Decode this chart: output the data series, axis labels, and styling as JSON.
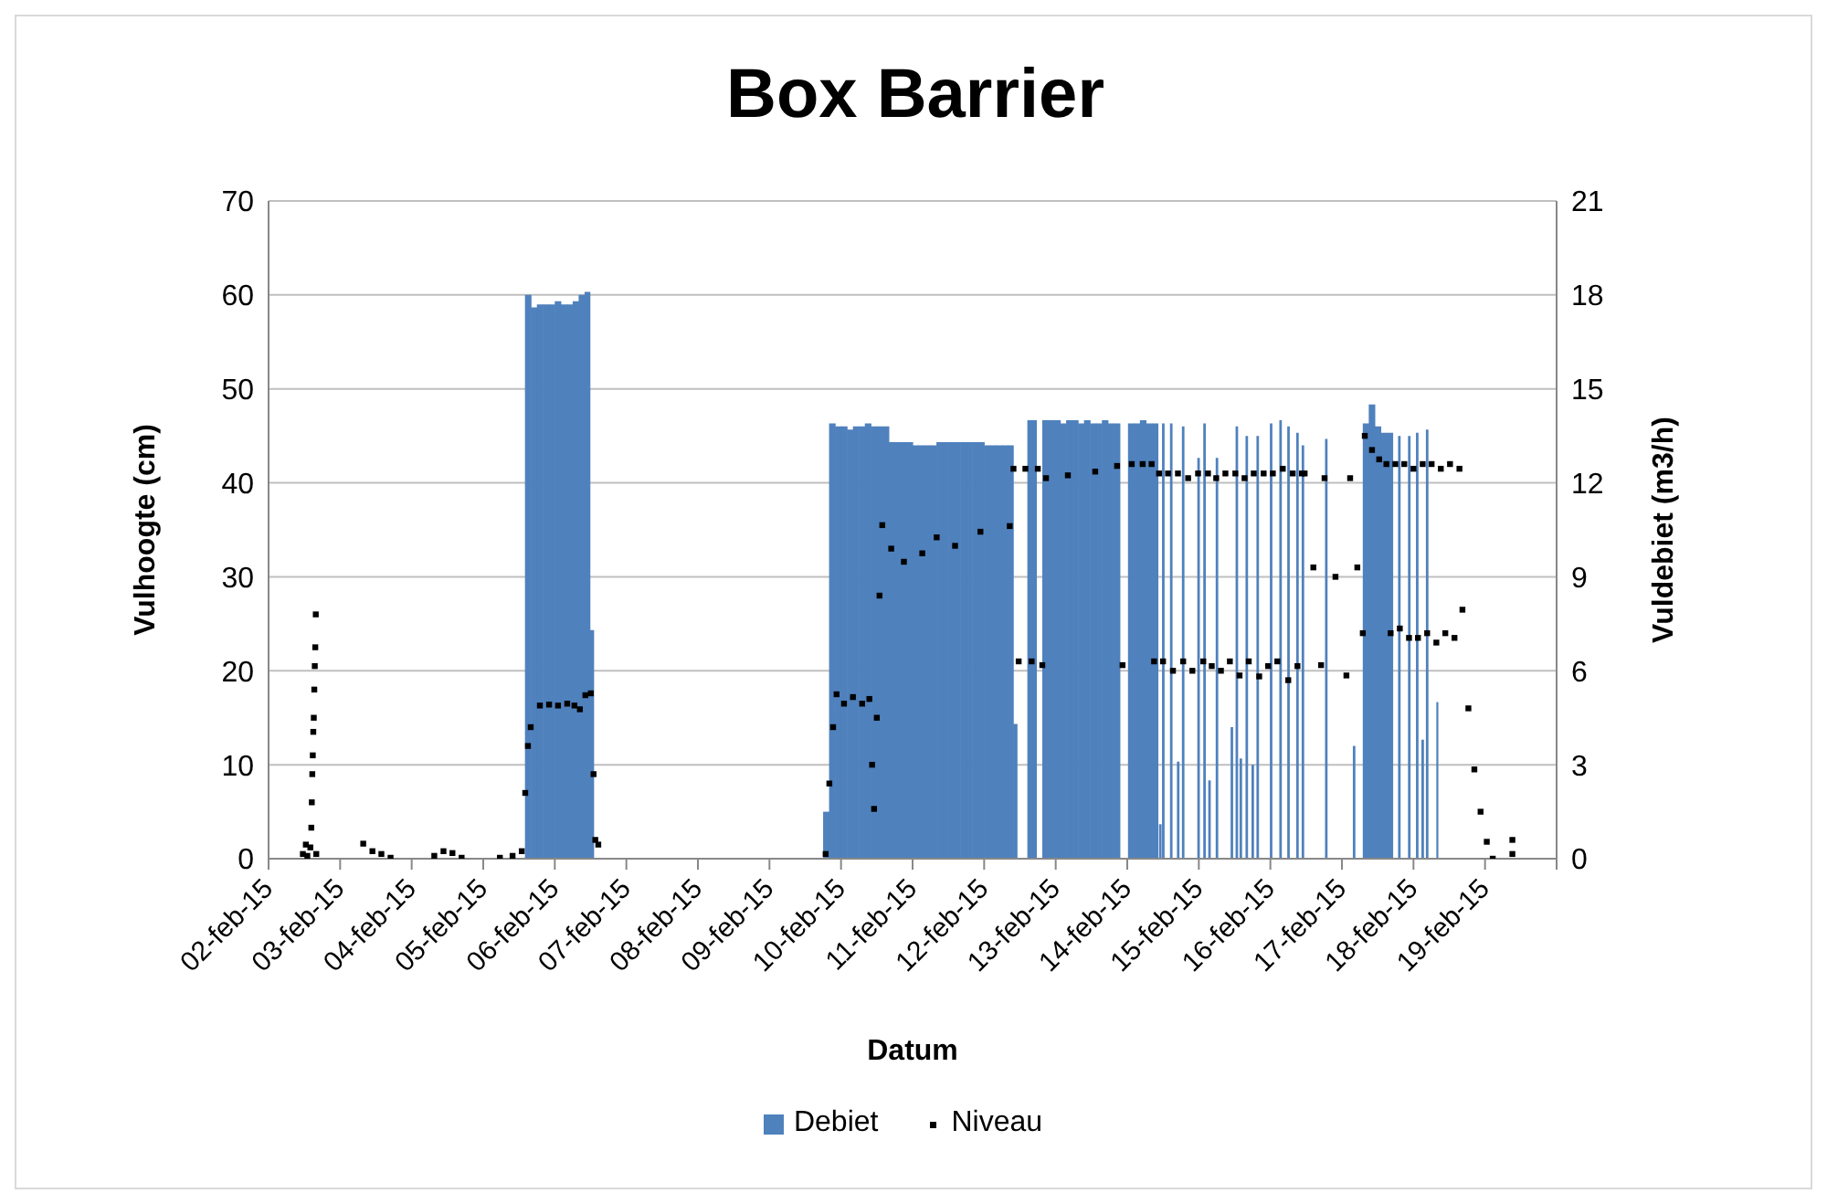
{
  "chart_data": {
    "type": "bar",
    "title": "Box Barrier",
    "xlabel": "Datum",
    "ylabel": "Vulhoogte (cm)",
    "y2label": "Vuldebiet (m3/h)",
    "xlim": [
      "--02-02",
      "--02-20"
    ],
    "xticks": [
      {
        "value": "--02-02",
        "label": "02-feb-15"
      },
      {
        "value": "--02-03",
        "label": "03-feb-15"
      },
      {
        "value": "--02-04",
        "label": "04-feb-15"
      },
      {
        "value": "--02-05",
        "label": "05-feb-15"
      },
      {
        "value": "--02-06",
        "label": "06-feb-15"
      },
      {
        "value": "--02-07",
        "label": "07-feb-15"
      },
      {
        "value": "--02-08",
        "label": "08-feb-15"
      },
      {
        "value": "--02-09",
        "label": "09-feb-15"
      },
      {
        "value": "--02-10",
        "label": "10-feb-15"
      },
      {
        "value": "--02-11",
        "label": "11-feb-15"
      },
      {
        "value": "--02-12",
        "label": "12-feb-15"
      },
      {
        "value": "--02-13",
        "label": "13-feb-15"
      },
      {
        "value": "--02-14",
        "label": "14-feb-15"
      },
      {
        "value": "--02-15",
        "label": "15-feb-15"
      },
      {
        "value": "--02-16",
        "label": "16-feb-15"
      },
      {
        "value": "--02-17",
        "label": "17-feb-15"
      },
      {
        "value": "--02-18",
        "label": "18-feb-15"
      },
      {
        "value": "--02-19",
        "label": "19-feb-15"
      },
      {
        "value": "--02-20",
        "label": null
      }
    ],
    "ylim": [
      0,
      70
    ],
    "yticks": [
      0,
      10,
      20,
      30,
      40,
      50,
      60,
      70
    ],
    "y2lim": [
      0,
      21
    ],
    "y2ticks": [
      0,
      3,
      6,
      9,
      12,
      15,
      18,
      21
    ],
    "grid": "y",
    "legend": "bottom",
    "marker": "square",
    "series": [
      {
        "name": "Debiet",
        "axis": "y2",
        "color": "#4f81bd",
        "x": [
          "--02-05T15:00",
          "--02-05T17:00",
          "--02-05T19:00",
          "--02-05T21:00",
          "--02-05T23:00",
          "--02-06T01:00",
          "--02-06T03:00",
          "--02-06T05:00",
          "--02-06T07:00",
          "--02-06T09:00",
          "--02-06T11:00",
          "--02-06T12:30",
          "--02-06T13:00",
          "--02-09T19:00",
          "--02-09T21:00",
          "--02-09T23:00",
          "--02-10T01:00",
          "--02-10T03:00",
          "--02-10T05:00",
          "--02-10T07:00",
          "--02-10T09:00",
          "--02-10T11:00",
          "--02-10T13:00",
          "--02-10T15:00",
          "--02-10T17:00",
          "--02-10T19:00",
          "--02-10T21:00",
          "--02-10T23:00",
          "--02-11T01:00",
          "--02-11T03:00",
          "--02-11T05:00",
          "--02-11T07:00",
          "--02-11T09:00",
          "--02-11T11:00",
          "--02-11T13:00",
          "--02-11T15:00",
          "--02-11T17:00",
          "--02-11T19:00",
          "--02-11T21:00",
          "--02-11T23:00",
          "--02-12T01:00",
          "--02-12T03:00",
          "--02-12T05:00",
          "--02-12T07:00",
          "--02-12T09:00",
          "--02-12T10:30",
          "--02-12T11:00",
          "--02-12T16:00",
          "--02-12T17:30",
          "--02-12T20:30",
          "--02-12T22:30",
          "--02-13T00:30",
          "--02-13T02:30",
          "--02-13T04:30",
          "--02-13T06:30",
          "--02-13T08:30",
          "--02-13T10:30",
          "--02-13T12:30",
          "--02-13T14:30",
          "--02-13T16:30",
          "--02-13T18:30",
          "--02-13T20:30",
          "--02-13T21:30",
          "--02-14T01:15",
          "--02-14T03:15",
          "--02-14T05:15",
          "--02-14T07:15",
          "--02-14T09:15",
          "--02-14T10:15",
          "--02-14T11:00",
          "--02-14T11:20",
          "--02-14T12:00",
          "--02-14T12:20",
          "--02-14T14:40",
          "--02-14T15:00",
          "--02-14T17:00",
          "--02-14T17:20",
          "--02-14T18:40",
          "--02-14T19:00",
          "--02-14T23:50",
          "--02-15T00:10",
          "--02-15T01:50",
          "--02-15T02:10",
          "--02-15T03:30",
          "--02-15T03:50",
          "--02-15T06:00",
          "--02-15T06:20",
          "--02-15T11:00",
          "--02-15T11:20",
          "--02-15T12:40",
          "--02-15T13:00",
          "--02-15T14:00",
          "--02-15T14:20",
          "--02-15T16:00",
          "--02-15T16:20",
          "--02-15T18:00",
          "--02-15T18:20",
          "--02-15T19:40",
          "--02-15T20:00",
          "--02-16T00:10",
          "--02-16T00:30",
          "--02-16T03:20",
          "--02-16T03:40",
          "--02-16T06:00",
          "--02-16T06:20",
          "--02-16T09:00",
          "--02-16T09:20",
          "--02-16T10:50",
          "--02-16T11:10",
          "--02-16T18:40",
          "--02-16T19:00",
          "--02-17T04:00",
          "--02-17T04:20",
          "--02-17T08:00",
          "--02-17T10:00",
          "--02-17T12:00",
          "--02-17T14:00",
          "--02-17T16:00",
          "--02-17T17:00",
          "--02-17T19:10",
          "--02-17T19:30",
          "--02-17T22:30",
          "--02-17T22:50",
          "--02-18T01:10",
          "--02-18T01:30",
          "--02-18T03:00",
          "--02-18T03:20",
          "--02-18T04:30",
          "--02-18T04:50",
          "--02-18T07:40"
        ],
        "values": [
          18.0,
          17.6,
          17.7,
          17.7,
          17.7,
          17.8,
          17.7,
          17.7,
          17.8,
          18.0,
          18.1,
          7.3,
          null,
          1.5,
          13.9,
          13.8,
          13.8,
          13.7,
          13.8,
          13.8,
          13.9,
          13.8,
          13.8,
          13.8,
          13.3,
          13.3,
          13.3,
          13.3,
          13.2,
          13.2,
          13.2,
          13.2,
          13.3,
          13.3,
          13.3,
          13.3,
          13.3,
          13.3,
          13.3,
          13.3,
          13.2,
          13.2,
          13.2,
          13.2,
          13.2,
          4.3,
          null,
          14.0,
          null,
          14.0,
          14.0,
          14.0,
          13.9,
          14.0,
          14.0,
          13.9,
          14.0,
          13.9,
          13.9,
          14.0,
          13.9,
          13.9,
          null,
          13.9,
          13.9,
          14.0,
          13.9,
          13.9,
          null,
          1.1,
          null,
          13.9,
          null,
          13.9,
          null,
          3.1,
          null,
          13.8,
          null,
          12.8,
          null,
          13.9,
          null,
          2.5,
          null,
          12.8,
          null,
          4.2,
          null,
          13.8,
          null,
          3.2,
          null,
          13.5,
          null,
          3.0,
          null,
          13.5,
          null,
          13.9,
          null,
          14.0,
          null,
          13.8,
          null,
          13.6,
          null,
          13.2,
          null,
          13.4,
          null,
          3.6,
          null,
          13.9,
          14.5,
          13.8,
          13.6,
          13.6,
          null,
          13.5,
          null,
          13.5,
          null,
          13.6,
          null,
          3.8,
          null,
          13.7,
          null,
          5.0
        ]
      },
      {
        "name": "Niveau",
        "type": "scatter",
        "color": "#000000",
        "x": [
          "--02-02T11:30",
          "--02-02T12:30",
          "--02-02T13:00",
          "--02-02T14:00",
          "--02-02T14:20",
          "--02-02T14:30",
          "--02-02T14:40",
          "--02-02T14:50",
          "--02-02T15:00",
          "--02-02T15:10",
          "--02-02T15:20",
          "--02-02T15:30",
          "--02-02T15:40",
          "--02-02T15:50",
          "--02-02T16:00",
          "--02-03T07:45",
          "--02-03T10:50",
          "--02-03T13:50",
          "--02-03T16:55",
          "--02-04T07:35",
          "--02-04T10:40",
          "--02-04T13:40",
          "--02-04T16:45",
          "--02-05T05:35",
          "--02-05T09:50",
          "--02-05T12:55",
          "--02-05T14:05",
          "--02-05T15:00",
          "--02-05T15:55",
          "--02-05T19:00",
          "--02-05T22:05",
          "--02-06T01:05",
          "--02-06T04:10",
          "--02-06T06:35",
          "--02-06T08:25",
          "--02-06T10:15",
          "--02-06T12:05",
          "--02-06T13:00",
          "--02-06T13:35",
          "--02-06T14:35",
          "--02-09T18:50",
          "--02-09T20:05",
          "--02-09T21:20",
          "--02-09T22:30",
          "--02-10T01:00",
          "--02-10T04:00",
          "--02-10T07:05",
          "--02-10T09:30",
          "--02-10T10:25",
          "--02-10T11:05",
          "--02-10T12:00",
          "--02-10T12:55",
          "--02-10T13:50",
          "--02-10T16:50",
          "--02-10T21:05",
          "--02-11T03:15",
          "--02-11T08:05",
          "--02-11T14:15",
          "--02-11T22:45",
          "--02-12T08:35",
          "--02-12T09:50",
          "--02-12T11:35",
          "--02-12T13:50",
          "--02-12T15:55",
          "--02-12T18:00",
          "--02-12T19:30",
          "--02-12T20:45",
          "--02-13T04:05",
          "--02-13T13:15",
          "--02-13T20:35",
          "--02-13T22:25",
          "--02-14T01:30",
          "--02-14T05:10",
          "--02-14T08:10",
          "--02-14T09:00",
          "--02-14T10:40",
          "--02-14T12:00",
          "--02-14T13:40",
          "--02-14T15:20",
          "--02-14T17:00",
          "--02-14T18:45",
          "--02-14T20:25",
          "--02-14T21:50",
          "--02-14T23:45",
          "--02-15T01:30",
          "--02-15T03:05",
          "--02-15T04:20",
          "--02-15T05:50",
          "--02-15T07:25",
          "--02-15T08:55",
          "--02-15T10:25",
          "--02-15T12:15",
          "--02-15T13:40",
          "--02-15T15:20",
          "--02-15T16:45",
          "--02-15T18:25",
          "--02-15T20:15",
          "--02-15T21:45",
          "--02-15T23:15",
          "--02-16T00:50",
          "--02-16T02:20",
          "--02-16T04:10",
          "--02-16T06:00",
          "--02-16T07:30",
          "--02-16T09:05",
          "--02-16T10:35",
          "--02-16T11:30",
          "--02-16T14:25",
          "--02-16T17:00",
          "--02-16T18:10",
          "--02-16T21:50",
          "--02-17T01:30",
          "--02-17T02:45",
          "--02-17T05:10",
          "--02-17T07:00",
          "--02-17T07:40",
          "--02-17T10:05",
          "--02-17T12:30",
          "--02-17T14:55",
          "--02-17T16:20",
          "--02-17T17:55",
          "--02-17T19:25",
          "--02-17T20:55",
          "--02-17T22:30",
          "--02-18T00:00",
          "--02-18T01:30",
          "--02-18T03:05",
          "--02-18T04:35",
          "--02-18T06:05",
          "--02-18T07:40",
          "--02-18T09:10",
          "--02-18T10:40",
          "--02-18T12:15",
          "--02-18T13:45",
          "--02-18T15:25",
          "--02-18T16:25",
          "--02-18T18:25",
          "--02-18T20:25",
          "--02-18T22:30",
          "--02-19T00:35",
          "--02-19T02:35",
          "--02-19T09:10",
          "--02-19T09:10"
        ],
        "values": [
          0.5,
          1.5,
          0.3,
          1.2,
          3.3,
          6,
          9,
          11,
          13.5,
          15,
          18,
          20.5,
          22.5,
          26,
          0.5,
          1.6,
          0.8,
          0.5,
          0.1,
          0.3,
          0.8,
          0.6,
          0.1,
          0.1,
          0.3,
          0.8,
          7,
          12,
          14,
          16.3,
          16.4,
          16.3,
          16.5,
          16.3,
          15.9,
          17.4,
          17.6,
          9,
          2,
          1.5,
          0.5,
          8,
          14,
          17.5,
          16.5,
          17.2,
          16.5,
          17,
          10,
          5.3,
          15,
          28,
          35.5,
          33,
          31.6,
          32.5,
          34.2,
          33.3,
          34.8,
          35.4,
          41.5,
          21,
          41.5,
          21,
          41.5,
          20.6,
          40.5,
          40.8,
          41.2,
          41.8,
          20.6,
          42,
          42,
          42,
          21,
          41,
          21,
          41,
          20,
          41,
          21,
          40.5,
          20,
          41,
          21,
          41,
          20.5,
          40.5,
          20,
          41,
          21,
          41,
          19.5,
          40.5,
          21,
          41,
          19.4,
          41,
          20.5,
          41,
          21,
          41.5,
          19,
          41,
          20.5,
          41,
          41,
          31,
          20.6,
          40.5,
          30,
          19.5,
          40.5,
          31,
          24,
          45,
          43.5,
          42.5,
          42,
          24,
          42,
          24.5,
          42,
          23.5,
          41.5,
          23.5,
          42,
          24,
          42,
          23,
          41.5,
          24,
          42,
          23.5,
          41.5,
          26.5,
          16,
          9.5,
          5,
          1.8,
          0,
          0.5,
          2
        ]
      }
    ]
  }
}
